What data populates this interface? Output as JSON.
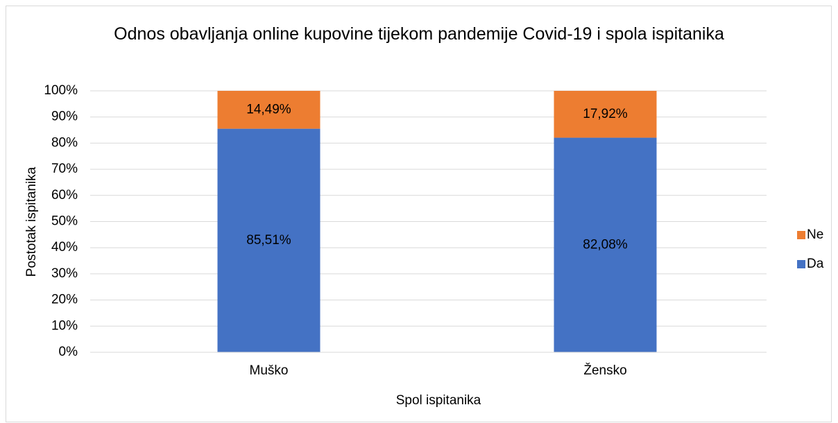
{
  "chart_data": {
    "type": "stacked_bar",
    "title": "Odnos obavljanja online kupovine tijekom pandemije Covid-19 i spola ispitanika",
    "xlabel": "Spol ispitanika",
    "ylabel": "Postotak ispitanika",
    "categories": [
      "Muško",
      "Žensko"
    ],
    "series": [
      {
        "name": "Da",
        "color": "#4472c4",
        "values": [
          85.51,
          82.08
        ],
        "value_labels": [
          "85,51%",
          "82,08%"
        ]
      },
      {
        "name": "Ne",
        "color": "#ed7d31",
        "values": [
          14.49,
          17.92
        ],
        "value_labels": [
          "14,49%",
          "17,92%"
        ]
      }
    ],
    "ylim": [
      0,
      100
    ],
    "yticks": [
      {
        "value": 0,
        "label": "0%"
      },
      {
        "value": 10,
        "label": "10%"
      },
      {
        "value": 20,
        "label": "20%"
      },
      {
        "value": 30,
        "label": "30%"
      },
      {
        "value": 40,
        "label": "40%"
      },
      {
        "value": 50,
        "label": "50%"
      },
      {
        "value": 60,
        "label": "60%"
      },
      {
        "value": 70,
        "label": "70%"
      },
      {
        "value": 80,
        "label": "80%"
      },
      {
        "value": 90,
        "label": "90%"
      },
      {
        "value": 100,
        "label": "100%"
      }
    ],
    "grid": true,
    "legend": "right"
  }
}
